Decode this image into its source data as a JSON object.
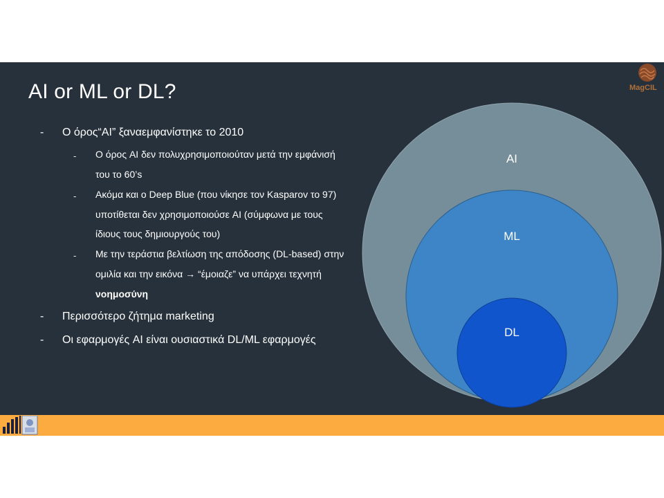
{
  "slide": {
    "title": "AI or ML or DL?",
    "bullets": [
      {
        "dash": "-",
        "text": "Ο όρος“AI” ξαναεμφανίστηκε το 2010",
        "sub": [
          {
            "dash": "-",
            "lines": [
              "Ο όρος AI δεν πολυχρησιμοποιούταν μετά την εμφάνισή",
              "του το 60’s"
            ]
          },
          {
            "dash": "-",
            "lines": [
              "Ακόμα και ο Deep Blue (που νίκησε τον Kasparov το 97)",
              "υποτίθεται δεν χρησιμοποιούσε AI (σύμφωνα με τους",
              "ίδιους τους δημιουργούς του)"
            ]
          },
          {
            "dash": "-",
            "lines": [
              "Με την τεράστια βελτίωση της απόδοσης (DL-based) στην",
              "ομιλία και την εικόνα → “έμοιαζε” να υπάρχει τεχνητή",
              "νοημοσύνη"
            ]
          }
        ]
      },
      {
        "dash": "-",
        "text": "Περισσότερο ζήτημα marketing"
      },
      {
        "dash": "-",
        "text": "Οι εφαρμογές AI είναι ουσιαστικά DL/ML εφαρμογές"
      }
    ]
  },
  "diagram": {
    "circles": [
      {
        "label": "AI",
        "color": "#768e9a"
      },
      {
        "label": "ML",
        "color": "#3d85c6"
      },
      {
        "label": "DL",
        "color": "#1155cc"
      }
    ]
  },
  "logos": {
    "top_right": {
      "name": "magcil-logo",
      "text": "MagCIL"
    },
    "footer_left": {
      "name": "institution-logo"
    }
  },
  "colors": {
    "slide_background": "#27313b",
    "footer_bar": "#fbab3f",
    "text": "#ffffff"
  }
}
